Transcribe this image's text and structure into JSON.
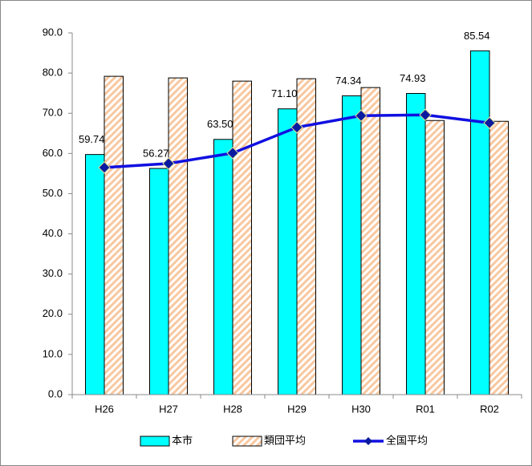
{
  "chart_data": {
    "type": "bar",
    "categories": [
      "H26",
      "H27",
      "H28",
      "H29",
      "H30",
      "R01",
      "R02"
    ],
    "series": [
      {
        "name": "本市",
        "color": "#00ffff",
        "values": [
          59.74,
          56.27,
          63.5,
          71.1,
          74.34,
          74.93,
          85.54
        ],
        "value_labels": [
          "59.74",
          "56.27",
          "63.50",
          "71.10",
          "74.34",
          "74.93",
          "85.54"
        ]
      },
      {
        "name": "類団平均",
        "color": "#f8c8a0",
        "values": [
          79.2,
          78.8,
          78.0,
          78.6,
          76.4,
          68.2,
          68.0
        ]
      },
      {
        "name": "全国平均",
        "type": "line",
        "color": "#1010e0",
        "values": [
          56.5,
          57.5,
          60.1,
          66.5,
          69.4,
          69.6,
          67.6
        ]
      }
    ],
    "ylim": [
      0,
      90
    ],
    "yticks": [
      {
        "value": 0,
        "label": "0.0"
      },
      {
        "value": 10,
        "label": "10.0"
      },
      {
        "value": 20,
        "label": "20.0"
      },
      {
        "value": 30,
        "label": "30.0"
      },
      {
        "value": 40,
        "label": "40.0"
      },
      {
        "value": 50,
        "label": "50.0"
      },
      {
        "value": 60,
        "label": "60.0"
      },
      {
        "value": 70,
        "label": "70.0"
      },
      {
        "value": 80,
        "label": "80.0"
      },
      {
        "value": 90,
        "label": "90.0"
      }
    ],
    "grid": false,
    "legend": "bottom"
  }
}
